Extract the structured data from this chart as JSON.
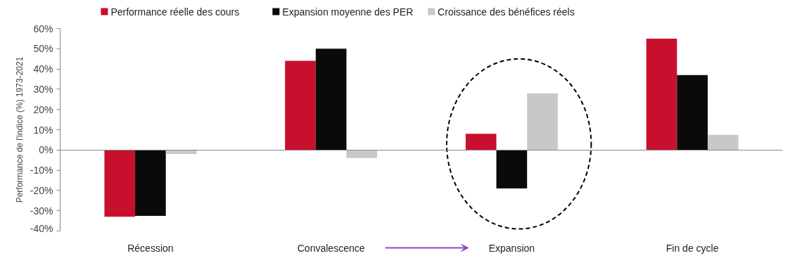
{
  "chart_data": {
    "type": "bar",
    "ylabel": "Performance de l'indice (%) 1973-2021",
    "categories": [
      "Récession",
      "Convalescence",
      "Expansion",
      "Fin de cycle"
    ],
    "series": [
      {
        "name": "Performance réelle des cours",
        "color": "#c8102e",
        "values": [
          -33,
          44,
          8,
          55
        ]
      },
      {
        "name": "Expansion moyenne des PER",
        "color": "#0a0a0a",
        "values": [
          -32.5,
          50,
          -19,
          37
        ]
      },
      {
        "name": "Croissance des bénéfices réels",
        "color": "#c8c8c6",
        "values": [
          -2,
          -4,
          28,
          7.5
        ]
      }
    ],
    "ylim": [
      -40,
      60
    ],
    "yticks": [
      {
        "value": -40,
        "label": "-40%"
      },
      {
        "value": -30,
        "label": "-30%"
      },
      {
        "value": -20,
        "label": "-20%"
      },
      {
        "value": -10,
        "label": "-10%"
      },
      {
        "value": 0,
        "label": "0%"
      },
      {
        "value": 10,
        "label": "10%"
      },
      {
        "value": 20,
        "label": "20%"
      },
      {
        "value": 30,
        "label": "30%"
      },
      {
        "value": 40,
        "label": "40%"
      },
      {
        "value": 50,
        "label": "50%"
      },
      {
        "value": 60,
        "label": "60%"
      }
    ],
    "legend": "top"
  }
}
